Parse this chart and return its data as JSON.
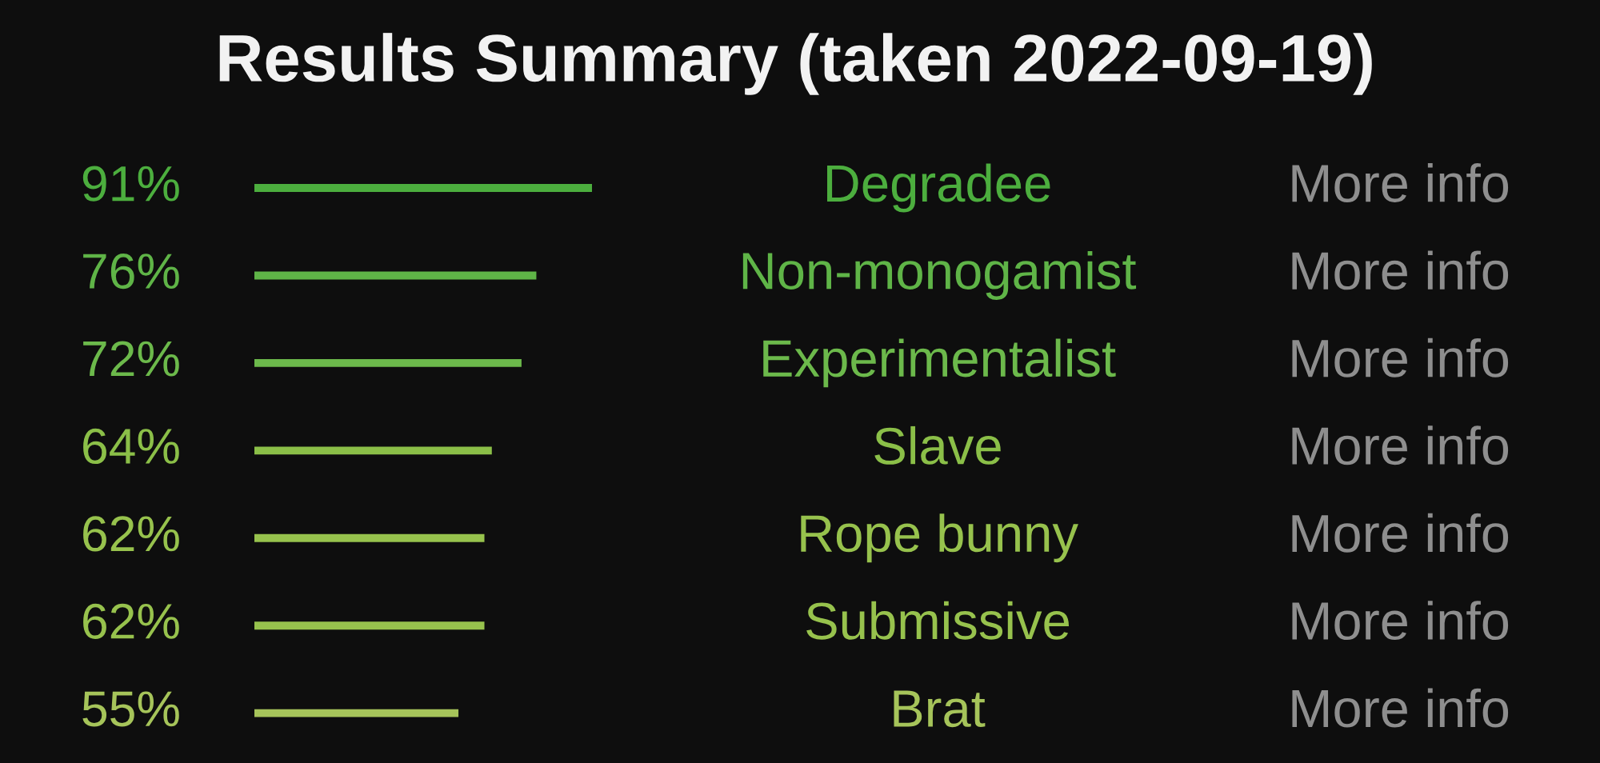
{
  "chart_data": {
    "type": "bar",
    "orientation": "horizontal",
    "title": "Results Summary (taken 2022-09-19)",
    "categories": [
      "Degradee",
      "Non-monogamist",
      "Experimentalist",
      "Slave",
      "Rope bunny",
      "Submissive",
      "Brat"
    ],
    "values": [
      91,
      76,
      72,
      64,
      62,
      62,
      55
    ],
    "colors": [
      "#4cae3e",
      "#5fb447",
      "#6cb94b",
      "#8bbf48",
      "#97c24d",
      "#97c24d",
      "#a6c45a"
    ],
    "value_labels": [
      "91%",
      "76%",
      "72%",
      "64%",
      "62%",
      "62%",
      "55%"
    ],
    "annotations": [
      "More info",
      "More info",
      "More info",
      "More info",
      "More info",
      "More info",
      "More info"
    ]
  }
}
